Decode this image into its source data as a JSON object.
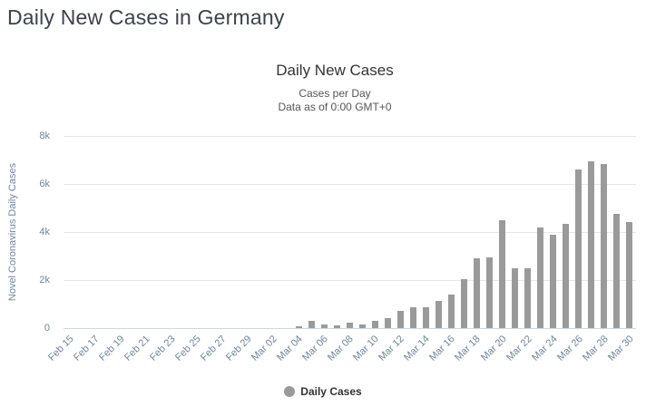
{
  "page": {
    "title": "Daily New Cases in Germany"
  },
  "chart": {
    "title": "Daily New Cases",
    "subtitle_line1": "Cases per Day",
    "subtitle_line2": "Data as of 0:00 GMT+0",
    "y_axis_title": "Novel Coronavirus Daily Cases",
    "legend_label": "Daily Cases",
    "colors": {
      "bar": "#9a9a9a",
      "grid": "#e6e6e6",
      "axis_line": "#ccd6eb",
      "axis_label": "#6d869f",
      "title": "#333333",
      "subtitle": "#555555",
      "heading": "#3b4250",
      "legend_text": "#333333"
    }
  },
  "chart_data": {
    "type": "bar",
    "title": "Daily New Cases",
    "subtitle": "Cases per Day — Data as of 0:00 GMT+0",
    "series_name": "Daily Cases",
    "xlabel": "",
    "ylabel": "Novel Coronavirus Daily Cases",
    "ylim": [
      0,
      8000
    ],
    "yticks": [
      0,
      2000,
      4000,
      6000,
      8000
    ],
    "ytick_labels": [
      "0",
      "2k",
      "4k",
      "6k",
      "8k"
    ],
    "x_tick_label_every": 2,
    "grid": true,
    "legend_position": "bottom",
    "bar_color": "#9a9a9a",
    "categories": [
      "Feb 15",
      "Feb 16",
      "Feb 17",
      "Feb 18",
      "Feb 19",
      "Feb 20",
      "Feb 21",
      "Feb 22",
      "Feb 23",
      "Feb 24",
      "Feb 25",
      "Feb 26",
      "Feb 27",
      "Feb 28",
      "Feb 29",
      "Mar 01",
      "Mar 02",
      "Mar 03",
      "Mar 04",
      "Mar 05",
      "Mar 06",
      "Mar 07",
      "Mar 08",
      "Mar 09",
      "Mar 10",
      "Mar 11",
      "Mar 12",
      "Mar 13",
      "Mar 14",
      "Mar 15",
      "Mar 16",
      "Mar 17",
      "Mar 18",
      "Mar 19",
      "Mar 20",
      "Mar 21",
      "Mar 22",
      "Mar 23",
      "Mar 24",
      "Mar 25",
      "Mar 26",
      "Mar 27",
      "Mar 28",
      "Mar 29",
      "Mar 30"
    ],
    "values": [
      0,
      0,
      0,
      0,
      0,
      0,
      0,
      0,
      0,
      0,
      0,
      0,
      0,
      0,
      0,
      0,
      0,
      0,
      70,
      310,
      140,
      110,
      220,
      150,
      300,
      410,
      720,
      880,
      880,
      1130,
      1400,
      2030,
      2900,
      2950,
      4490,
      2480,
      2480,
      4180,
      3900,
      4330,
      6620,
      6930,
      6830,
      4740,
      4420
    ]
  }
}
